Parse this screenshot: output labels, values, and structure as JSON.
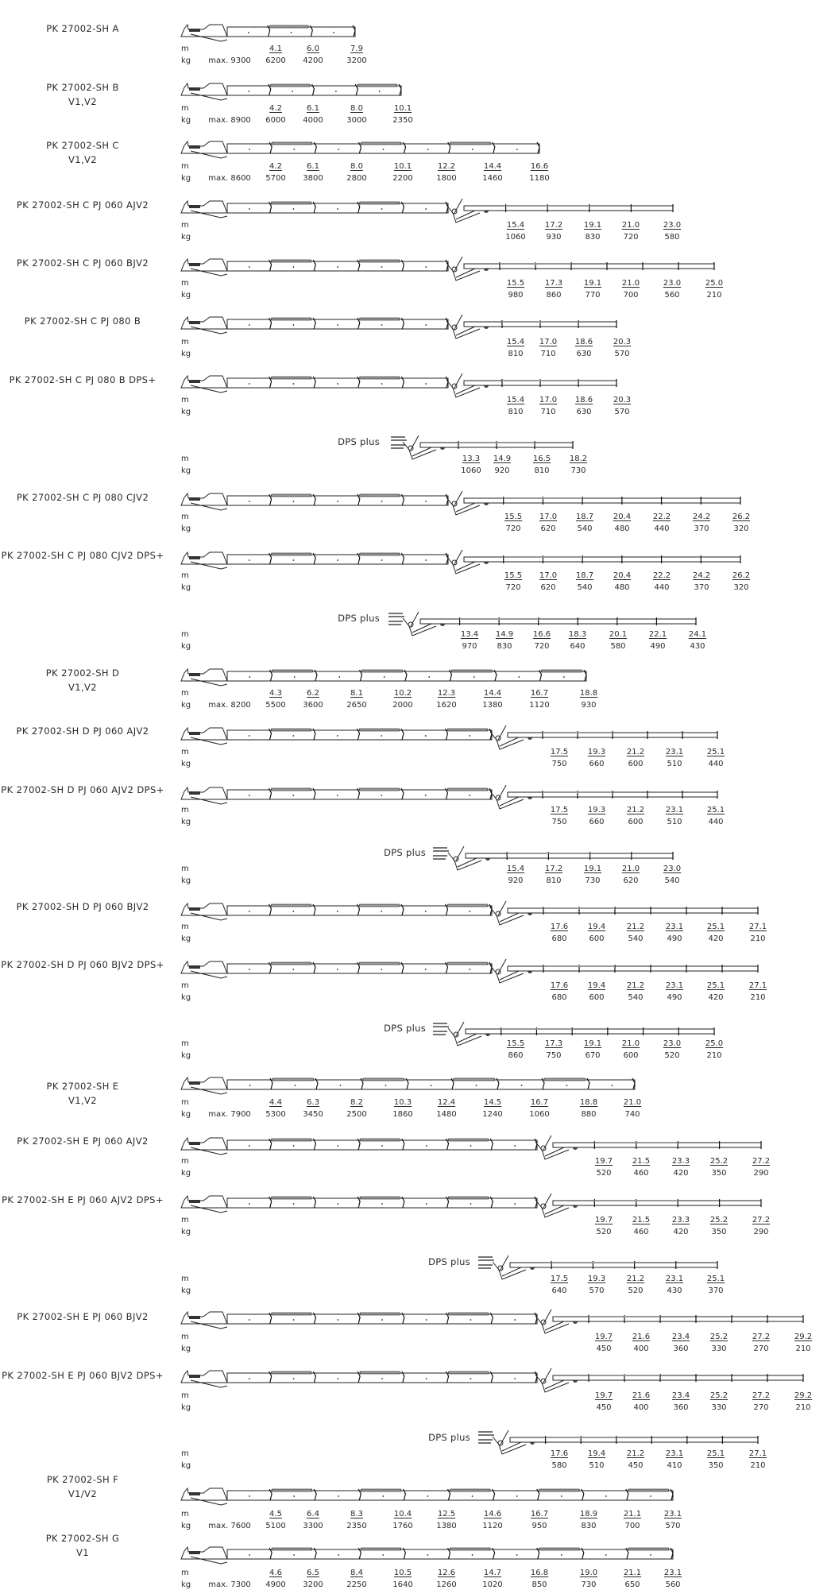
{
  "units": {
    "m": "m",
    "kg": "kg"
  },
  "rows": [
    {
      "title": [
        "PK 27002-SH A"
      ],
      "max": "max. 9300",
      "m": [
        "4.1",
        "6.0",
        "7.9"
      ],
      "kg": [
        "6200",
        "4200",
        "3200"
      ]
    },
    {
      "title": [
        "PK 27002-SH B",
        "V1,V2"
      ],
      "max": "max. 8900",
      "m": [
        "4.2",
        "6.1",
        "8.0",
        "10.1"
      ],
      "kg": [
        "6000",
        "4000",
        "3000",
        "2350"
      ]
    },
    {
      "title": [
        "PK 27002-SH C",
        "V1,V2"
      ],
      "max": "max. 8600",
      "m": [
        "4.2",
        "6.1",
        "8.0",
        "10.1",
        "12.2",
        "14.4",
        "16.6"
      ],
      "kg": [
        "5700",
        "3800",
        "2800",
        "2200",
        "1800",
        "1460",
        "1180"
      ]
    },
    {
      "title": [
        "PK 27002-SH C PJ 060 AJV2"
      ],
      "m": [
        "15.4",
        "17.2",
        "19.1",
        "21.0",
        "23.0"
      ],
      "kg": [
        "1060",
        "930",
        "830",
        "720",
        "580"
      ]
    },
    {
      "title": [
        "PK 27002-SH C PJ 060 BJV2"
      ],
      "m": [
        "15.5",
        "17.3",
        "19.1",
        "21.0",
        "23.0",
        "25.0"
      ],
      "kg": [
        "980",
        "860",
        "770",
        "700",
        "560",
        "210"
      ]
    },
    {
      "title": [
        "PK 27002-SH C PJ 080 B"
      ],
      "m": [
        "15.4",
        "17.0",
        "18.6",
        "20.3"
      ],
      "kg": [
        "810",
        "710",
        "630",
        "570"
      ]
    },
    {
      "title": [
        "PK 27002-SH C PJ 080 B DPS+"
      ],
      "m": [
        "15.4",
        "17.0",
        "18.6",
        "20.3"
      ],
      "kg": [
        "810",
        "710",
        "630",
        "570"
      ]
    },
    {
      "dps": "DPS plus",
      "m": [
        "13.3",
        "14.9",
        "16.5",
        "18.2"
      ],
      "kg": [
        "1060",
        "920",
        "810",
        "730"
      ]
    },
    {
      "title": [
        "PK 27002-SH C PJ 080 CJV2"
      ],
      "m": [
        "15.5",
        "17.0",
        "18.7",
        "20.4",
        "22.2",
        "24.2",
        "26.2"
      ],
      "kg": [
        "720",
        "620",
        "540",
        "480",
        "440",
        "370",
        "320"
      ]
    },
    {
      "title": [
        "PK 27002-SH C PJ 080 CJV2 DPS+"
      ],
      "m": [
        "15.5",
        "17.0",
        "18.7",
        "20.4",
        "22.2",
        "24.2",
        "26.2"
      ],
      "kg": [
        "720",
        "620",
        "540",
        "480",
        "440",
        "370",
        "320"
      ]
    },
    {
      "dps": "DPS plus",
      "m": [
        "13.4",
        "14.9",
        "16.6",
        "18.3",
        "20.1",
        "22.1",
        "24.1"
      ],
      "kg": [
        "970",
        "830",
        "720",
        "640",
        "580",
        "490",
        "430"
      ]
    },
    {
      "title": [
        "PK 27002-SH D",
        "V1,V2"
      ],
      "max": "max. 8200",
      "m": [
        "4.3",
        "6.2",
        "8.1",
        "10.2",
        "12.3",
        "14.4",
        "16.7",
        "18.8"
      ],
      "kg": [
        "5500",
        "3600",
        "2650",
        "2000",
        "1620",
        "1380",
        "1120",
        "930"
      ]
    },
    {
      "title": [
        "PK 27002-SH D PJ 060 AJV2"
      ],
      "m": [
        "17.5",
        "19.3",
        "21.2",
        "23.1",
        "25.1"
      ],
      "kg": [
        "750",
        "660",
        "600",
        "510",
        "440"
      ]
    },
    {
      "title": [
        "PK 27002-SH D PJ 060 AJV2 DPS+"
      ],
      "m": [
        "17.5",
        "19.3",
        "21.2",
        "23.1",
        "25.1"
      ],
      "kg": [
        "750",
        "660",
        "600",
        "510",
        "440"
      ]
    },
    {
      "dps": "DPS plus",
      "m": [
        "15.4",
        "17.2",
        "19.1",
        "21.0",
        "23.0"
      ],
      "kg": [
        "920",
        "810",
        "730",
        "620",
        "540"
      ]
    },
    {
      "title": [
        "PK 27002-SH D PJ 060 BJV2"
      ],
      "m": [
        "17.6",
        "19.4",
        "21.2",
        "23.1",
        "25.1",
        "27.1"
      ],
      "kg": [
        "680",
        "600",
        "540",
        "490",
        "420",
        "210"
      ]
    },
    {
      "title": [
        "PK 27002-SH D PJ 060 BJV2 DPS+"
      ],
      "m": [
        "17.6",
        "19.4",
        "21.2",
        "23.1",
        "25.1",
        "27.1"
      ],
      "kg": [
        "680",
        "600",
        "540",
        "490",
        "420",
        "210"
      ]
    },
    {
      "dps": "DPS plus",
      "m": [
        "15.5",
        "17.3",
        "19.1",
        "21.0",
        "23.0",
        "25.0"
      ],
      "kg": [
        "860",
        "750",
        "670",
        "600",
        "520",
        "210"
      ]
    },
    {
      "title": [
        "PK 27002-SH E",
        "V1,V2"
      ],
      "max": "max. 7900",
      "m": [
        "4.4",
        "6.3",
        "8.2",
        "10.3",
        "12.4",
        "14.5",
        "16.7",
        "18.8",
        "21.0"
      ],
      "kg": [
        "5300",
        "3450",
        "2500",
        "1860",
        "1480",
        "1240",
        "1060",
        "880",
        "740"
      ]
    },
    {
      "title": [
        "PK 27002-SH E PJ 060 AJV2"
      ],
      "m": [
        "19.7",
        "21.5",
        "23.3",
        "25.2",
        "27.2"
      ],
      "kg": [
        "520",
        "460",
        "420",
        "350",
        "290"
      ]
    },
    {
      "title": [
        "PK 27002-SH E PJ 060 AJV2 DPS+"
      ],
      "m": [
        "19.7",
        "21.5",
        "23.3",
        "25.2",
        "27.2"
      ],
      "kg": [
        "520",
        "460",
        "420",
        "350",
        "290"
      ]
    },
    {
      "dps": "DPS plus",
      "m": [
        "17.5",
        "19.3",
        "21.2",
        "23.1",
        "25.1"
      ],
      "kg": [
        "640",
        "570",
        "520",
        "430",
        "370"
      ]
    },
    {
      "title": [
        "PK 27002-SH E PJ 060 BJV2"
      ],
      "m": [
        "19.7",
        "21.6",
        "23.4",
        "25.2",
        "27.2",
        "29.2"
      ],
      "kg": [
        "450",
        "400",
        "360",
        "330",
        "270",
        "210"
      ]
    },
    {
      "title": [
        "PK 27002-SH E PJ 060 BJV2 DPS+"
      ],
      "m": [
        "19.7",
        "21.6",
        "23.4",
        "25.2",
        "27.2",
        "29.2"
      ],
      "kg": [
        "450",
        "400",
        "360",
        "330",
        "270",
        "210"
      ]
    },
    {
      "dps": "DPS plus",
      "m": [
        "17.6",
        "19.4",
        "21.2",
        "23.1",
        "25.1",
        "27.1"
      ],
      "kg": [
        "580",
        "510",
        "450",
        "410",
        "350",
        "210"
      ]
    },
    {
      "title": [
        "PK 27002-SH F",
        "V1/V2"
      ],
      "max": "max. 7600",
      "m": [
        "4.5",
        "6.4",
        "8.3",
        "10.4",
        "12.5",
        "14.6",
        "16.7",
        "18.9",
        "21.1",
        "23.1"
      ],
      "kg": [
        "5100",
        "3300",
        "2350",
        "1760",
        "1380",
        "1120",
        "950",
        "830",
        "700",
        "570"
      ]
    },
    {
      "title": [
        "PK 27002-SH G",
        "V1"
      ],
      "max": "max. 7300",
      "m": [
        "4.6",
        "6.5",
        "8.4",
        "10.5",
        "12.6",
        "14.7",
        "16.8",
        "19.0",
        "21.1",
        "23.1"
      ],
      "kg": [
        "4900",
        "3200",
        "2250",
        "1640",
        "1260",
        "1020",
        "850",
        "730",
        "650",
        "560"
      ]
    }
  ]
}
